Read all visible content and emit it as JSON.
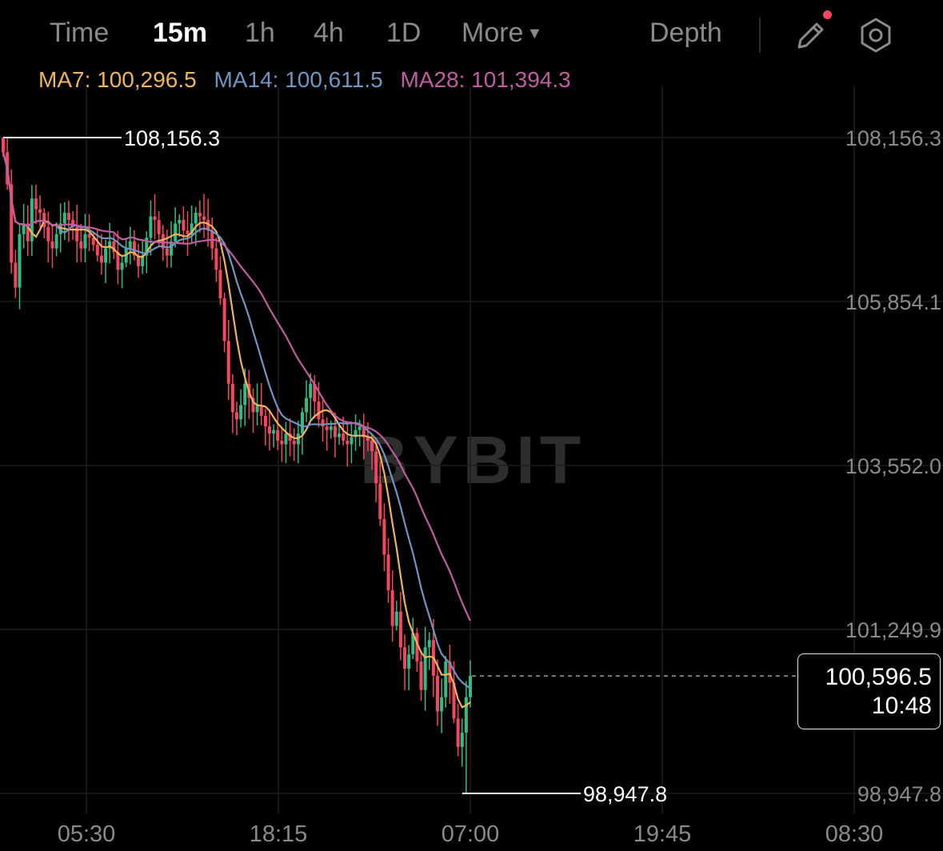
{
  "toolbar": {
    "timeframes": [
      {
        "label": "Time",
        "active": false
      },
      {
        "label": "15m",
        "active": true
      },
      {
        "label": "1h",
        "active": false
      },
      {
        "label": "4h",
        "active": false
      },
      {
        "label": "1D",
        "active": false
      },
      {
        "label": "More",
        "active": false
      }
    ],
    "depth_label": "Depth",
    "icons": [
      "pencil-icon",
      "settings-icon",
      "notification-dot"
    ]
  },
  "indicators": [
    {
      "label": "MA7: 100,296.5",
      "color": "#f0b45a"
    },
    {
      "label": "MA14: 100,611.5",
      "color": "#6f96c2"
    },
    {
      "label": "MA28: 101,394.3",
      "color": "#c35ba3"
    }
  ],
  "watermark": "BYBIT",
  "colors": {
    "up": "#2ebd85",
    "down": "#f6465d",
    "ma7": "#f0b45a",
    "ma14": "#6f96c2",
    "ma28": "#c35ba3"
  },
  "chart_data": {
    "type": "candlestick",
    "y_ticks": [
      "108,156.3",
      "105,854.1",
      "103,552.0",
      "101,249.9",
      "98,947.8"
    ],
    "ylim": [
      98947.8,
      108156.3
    ],
    "x_ticks": [
      "05:30",
      "18:15",
      "07:00",
      "19:45",
      "08:30"
    ],
    "high_marker": "108,156.3",
    "low_marker": "98,947.8",
    "last_price": "100,596.5",
    "last_price_value": 100596.5,
    "countdown": "10:48",
    "grid": true,
    "close_series": [
      107950,
      107500,
      106400,
      106050,
      106800,
      106950,
      106700,
      107300,
      107150,
      107100,
      106900,
      106700,
      106600,
      106800,
      106950,
      107100,
      107000,
      106900,
      106700,
      106600,
      106800,
      106750,
      106650,
      106500,
      106400,
      106600,
      106700,
      106550,
      106300,
      106400,
      106600,
      106700,
      106500,
      106350,
      106500,
      106750,
      107050,
      107000,
      106800,
      106600,
      106500,
      106700,
      106950,
      107000,
      106850,
      106800,
      106950,
      107100,
      107050,
      107000,
      106850,
      106600,
      106300,
      105900,
      105300,
      104700,
      104300,
      104200,
      104400,
      104700,
      104500,
      104300,
      104400,
      104250,
      104100,
      104000,
      104050,
      103900,
      103850,
      104000,
      103900,
      103850,
      104000,
      104300,
      104500,
      104700,
      104450,
      104200,
      104100,
      104050,
      104100,
      103950,
      104000,
      103900,
      103850,
      103950,
      104050,
      104100,
      103950,
      103900,
      103750,
      103300,
      102800,
      102300,
      101800,
      101300,
      101500,
      101000,
      100700,
      100900,
      101200,
      100800,
      100400,
      101000,
      101100,
      100600,
      100100,
      100300,
      100800,
      100500,
      100000,
      99600,
      99800,
      100300,
      100596.5
    ]
  }
}
